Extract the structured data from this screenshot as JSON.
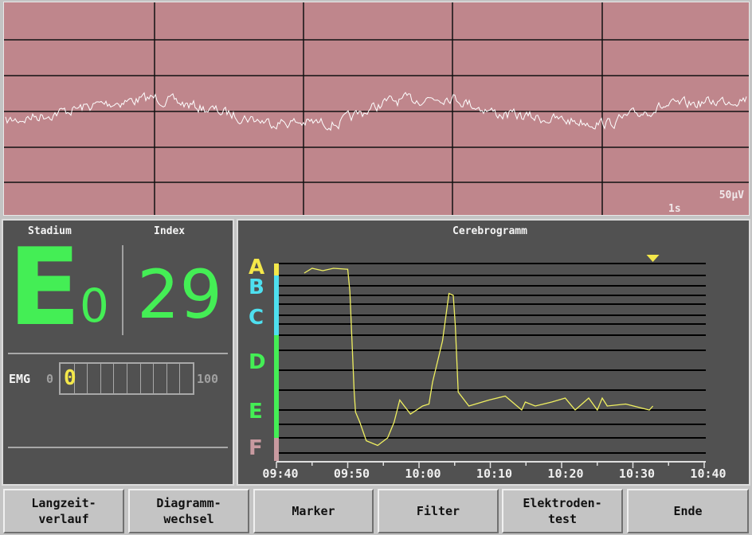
{
  "eeg": {
    "time_scale_label": "1s",
    "amplitude_label": "50µV",
    "background": "#bf868c",
    "trace_color": "#ffffff"
  },
  "left_panel": {
    "stadium_label": "Stadium",
    "stadium_letter": "E",
    "stadium_sub": "0",
    "index_label": "Index",
    "index_value": "29",
    "value_color": "#44ee55",
    "emg": {
      "label": "EMG",
      "min": "0",
      "max": "100",
      "value": "0",
      "level_percent": 0
    }
  },
  "cerebrogram": {
    "title": "Cerebrogramm",
    "stages": [
      {
        "letter": "A",
        "color": "#f4e84a"
      },
      {
        "letter": "B",
        "color": "#4ee0f0"
      },
      {
        "letter": "C",
        "color": "#4ee0f0"
      },
      {
        "letter": "D",
        "color": "#44ee55"
      },
      {
        "letter": "E",
        "color": "#44ee55"
      },
      {
        "letter": "F",
        "color": "#c89aa0"
      }
    ],
    "x_ticks": [
      "09:40",
      "09:50",
      "10:00",
      "10:10",
      "10:20",
      "10:30",
      "10:40"
    ],
    "marker_time": "10:32.8"
  },
  "chart_data": {
    "type": "line",
    "title": "Cerebrogramm",
    "x_unit": "time",
    "xlim": [
      "09:40",
      "10:40"
    ],
    "ylim": [
      0,
      100
    ],
    "y_boundaries": [
      100,
      95,
      90,
      85,
      80,
      75,
      70,
      65,
      57,
      47,
      37,
      27,
      20,
      13,
      5,
      0
    ],
    "y_tick_labels": [
      "A",
      "B",
      "C",
      "D",
      "E",
      "F"
    ],
    "grid": true,
    "line_color": "#f0f060",
    "points": [
      [
        "09:43.9",
        96
      ],
      [
        "09:45.0",
        98
      ],
      [
        "09:46.5",
        97
      ],
      [
        "09:48.0",
        98
      ],
      [
        "09:50.0",
        97.6
      ],
      [
        "09:50.3",
        87
      ],
      [
        "09:50.9",
        36
      ],
      [
        "09:51.1",
        26
      ],
      [
        "09:51.7",
        21
      ],
      [
        "09:52.6",
        11.5
      ],
      [
        "09:54.2",
        9
      ],
      [
        "09:55.6",
        13
      ],
      [
        "09:56.5",
        21
      ],
      [
        "09:57.3",
        32
      ],
      [
        "09:58.8",
        25
      ],
      [
        "10:00.5",
        29
      ],
      [
        "10:01.4",
        30
      ],
      [
        "10:01.9",
        41
      ],
      [
        "10:03.3",
        62
      ],
      [
        "10:04.2",
        86
      ],
      [
        "10:04.8",
        85
      ],
      [
        "10:05.1",
        69
      ],
      [
        "10:05.5",
        36
      ],
      [
        "10:07.0",
        29
      ],
      [
        "10:09.8",
        32
      ],
      [
        "10:12.1",
        34
      ],
      [
        "10:14.4",
        27
      ],
      [
        "10:14.9",
        31
      ],
      [
        "10:16.3",
        29
      ],
      [
        "10:18.6",
        31
      ],
      [
        "10:20.5",
        33
      ],
      [
        "10:21.9",
        27
      ],
      [
        "10:23.8",
        33
      ],
      [
        "10:25.0",
        27
      ],
      [
        "10:25.7",
        33
      ],
      [
        "10:26.4",
        29
      ],
      [
        "10:29.0",
        30
      ],
      [
        "10:32.3",
        27
      ],
      [
        "10:32.8",
        29
      ]
    ]
  },
  "buttons": [
    {
      "label": "Langzeit-\nverlauf"
    },
    {
      "label": "Diagramm-\nwechsel"
    },
    {
      "label": "Marker"
    },
    {
      "label": "Filter"
    },
    {
      "label": "Elektroden-\ntest"
    },
    {
      "label": "Ende"
    }
  ]
}
